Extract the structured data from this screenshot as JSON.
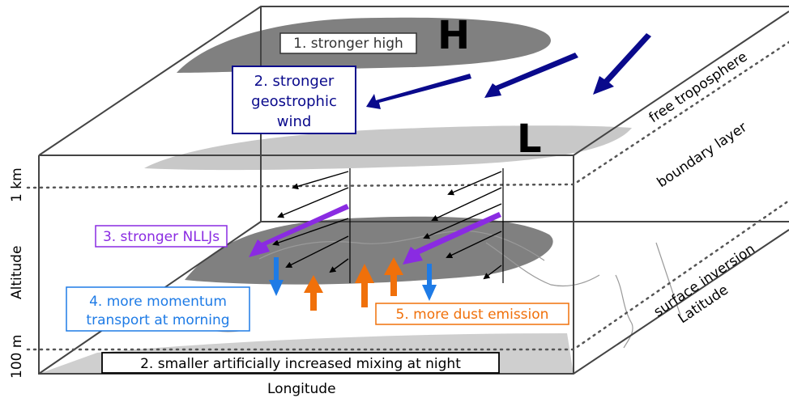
{
  "colors": {
    "box_edge": "#444444",
    "dark_blue": "#0a0a8c",
    "purple": "#8a2be2",
    "light_blue": "#1e7be6",
    "orange": "#f0700a",
    "shade_dark": "#808080",
    "shade_light": "#c8c8c8"
  },
  "pressure": {
    "high": "H",
    "low": "L"
  },
  "layers": {
    "free_troposphere": "free troposphere",
    "boundary_layer": "boundary layer",
    "surface_inversion": "surface inversion"
  },
  "axes": {
    "altitude": "Altitude",
    "longitude": "Longitude",
    "latitude": "Latitude",
    "tick_1km": "1 km",
    "tick_100m": "100 m"
  },
  "boxes": {
    "b1": "1. stronger high",
    "b2_line1": "2. stronger",
    "b2_line2": "geostrophic",
    "b2_line3": "wind",
    "b3": "3. stronger NLLJs",
    "b4_line1": "4. more momentum",
    "b4_line2": "transport at morning",
    "b5": "5. more dust emission",
    "b6": "2. smaller artificially increased mixing at night"
  }
}
